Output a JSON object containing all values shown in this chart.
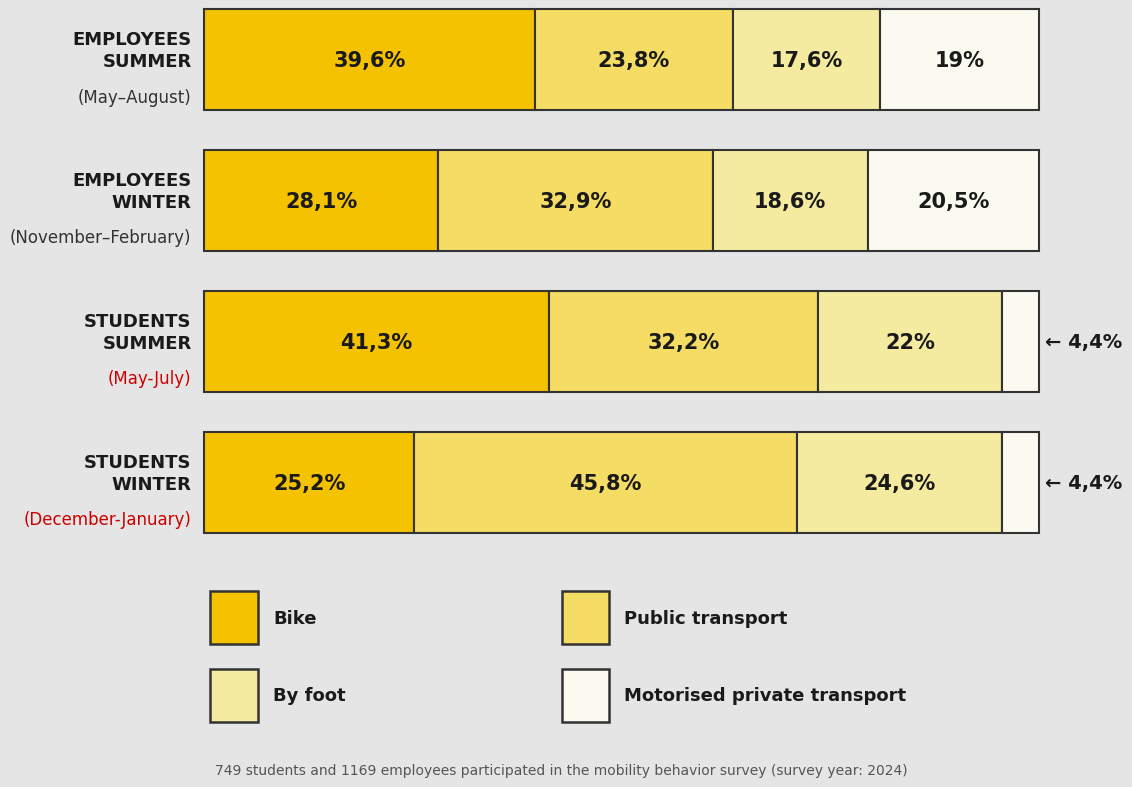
{
  "background_color": "#e5e5e5",
  "rows": [
    {
      "label_line1": "EMPLOYEES",
      "label_line2": "SUMMER",
      "label_line3": "(May–August)",
      "label_color3": "#333333",
      "values": [
        39.6,
        23.8,
        17.6,
        19.0
      ],
      "labels": [
        "39,6%",
        "23,8%",
        "17,6%",
        "19%"
      ],
      "show_arrow": false,
      "arrow_label": ""
    },
    {
      "label_line1": "EMPLOYEES",
      "label_line2": "WINTER",
      "label_line3": "(November–February)",
      "label_color3": "#333333",
      "values": [
        28.1,
        32.9,
        18.6,
        20.5
      ],
      "labels": [
        "28,1%",
        "32,9%",
        "18,6%",
        "20,5%"
      ],
      "show_arrow": false,
      "arrow_label": ""
    },
    {
      "label_line1": "STUDENTS",
      "label_line2": "SUMMER",
      "label_line3": "(May-July)",
      "label_color3": "#cc0000",
      "values": [
        41.3,
        32.2,
        22.0,
        4.4
      ],
      "labels": [
        "41,3%",
        "32,2%",
        "22%",
        ""
      ],
      "show_arrow": true,
      "arrow_label": "← 4,4%"
    },
    {
      "label_line1": "STUDENTS",
      "label_line2": "WINTER",
      "label_line3": "(December-January)",
      "label_color3": "#cc0000",
      "values": [
        25.2,
        45.8,
        24.6,
        4.4
      ],
      "labels": [
        "25,2%",
        "45,8%",
        "24,6%",
        ""
      ],
      "show_arrow": true,
      "arrow_label": "← 4,4%"
    }
  ],
  "colors": [
    "#f5c200",
    "#f5dc64",
    "#f5eba0",
    "#fafaf0"
  ],
  "bar_edgecolor": "#333333",
  "bar_linewidth": 1.5,
  "legend_items": [
    {
      "label": "Bike",
      "color": "#f5c200",
      "col": 0,
      "row": 0
    },
    {
      "label": "Public transport",
      "color": "#f5dc64",
      "col": 1,
      "row": 0
    },
    {
      "label": "By foot",
      "color": "#f5eba0",
      "col": 0,
      "row": 1
    },
    {
      "label": "Motorised private transport",
      "color": "#fafaf0",
      "col": 1,
      "row": 1
    }
  ],
  "footnote": "749 students and 1169 employees participated in the mobility behavior survey (survey year: 2024)",
  "label_fontsize": 13,
  "value_fontsize": 15,
  "arrow_fontsize": 14
}
